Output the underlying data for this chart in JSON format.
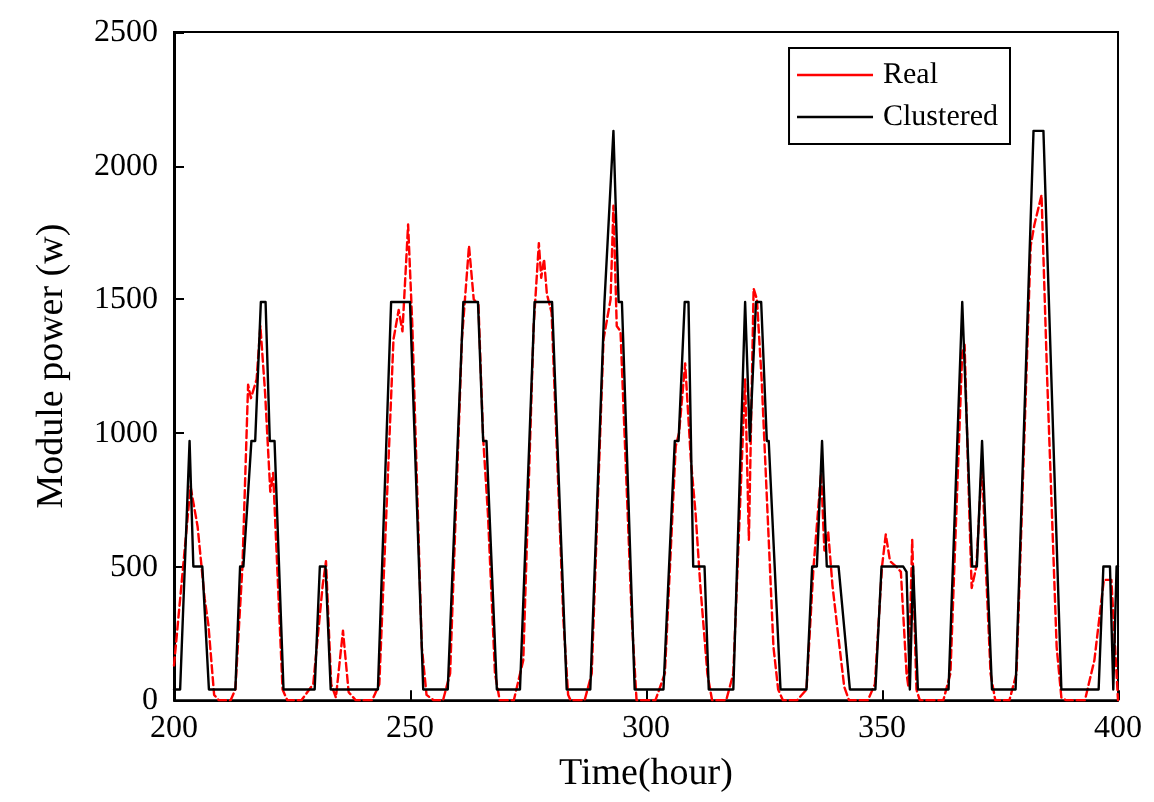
{
  "chart_data": {
    "type": "line",
    "xlabel": "Time(hour)",
    "ylabel": "Module power (w)",
    "xlim": [
      200,
      400
    ],
    "xticks": [
      200,
      250,
      300,
      350,
      400
    ],
    "ylim": [
      0,
      2500
    ],
    "yticks": [
      0,
      500,
      1000,
      1500,
      2000,
      2500
    ],
    "grid": false,
    "legend": "top right",
    "marker": "none",
    "series": [
      {
        "name": "Real",
        "color": "#ff0000",
        "line_style": "dashed",
        "x": [
          200,
          203.5,
          205,
          206.5,
          207.3,
          208.5,
          209.5,
          212,
          213,
          214.5,
          215.7,
          216.3,
          217.5,
          218.3,
          219.3,
          220.4,
          221,
          223,
          224,
          227,
          229.5,
          231.5,
          232.2,
          233.3,
          234.3,
          235.8,
          237,
          238.5,
          242,
          243.5,
          246.5,
          247,
          247.6,
          248.4,
          249.6,
          250.5,
          252.5,
          253.5,
          255,
          257,
          258.5,
          261,
          262.5,
          263.5,
          264.5,
          265.5,
          266.5,
          268,
          269,
          272,
          274,
          276.2,
          277.3,
          277.8,
          278.4,
          279,
          280,
          282.5,
          283.5,
          284,
          287,
          288.5,
          291,
          292.5,
          293.1,
          293.8,
          294.6,
          295,
          297,
          298,
          302,
          304,
          306.3,
          307,
          308.3,
          309.5,
          310.5,
          311.5,
          313,
          314,
          317,
          318.5,
          321,
          321.8,
          322.8,
          323.5,
          324.5,
          326,
          327,
          328,
          329,
          332,
          334,
          335.5,
          337.1,
          337.8,
          338.6,
          339.5,
          341,
          342,
          343,
          347,
          348.5,
          350,
          350.8,
          351.7,
          353,
          354,
          355.2,
          355.6,
          356.4,
          357.3,
          358,
          363,
          364.5,
          367,
          367.5,
          368.5,
          369,
          370,
          371.2,
          372,
          373,
          374,
          377,
          378.5,
          381.5,
          382.3,
          383.8,
          385,
          387,
          388,
          389,
          393,
          395,
          397,
          398.6,
          400
        ],
        "values": [
          130,
          800,
          650,
          380,
          280,
          20,
          0,
          0,
          40,
          500,
          1180,
          1130,
          1200,
          1400,
          1150,
          780,
          850,
          40,
          0,
          0,
          60,
          430,
          520,
          60,
          10,
          260,
          30,
          0,
          0,
          60,
          1350,
          1400,
          1460,
          1380,
          1780,
          1400,
          200,
          20,
          0,
          0,
          100,
          1350,
          1700,
          1500,
          1480,
          980,
          700,
          100,
          0,
          0,
          150,
          1400,
          1710,
          1580,
          1650,
          1520,
          1450,
          300,
          20,
          0,
          0,
          100,
          1350,
          1500,
          1850,
          1400,
          1380,
          1200,
          300,
          0,
          0,
          100,
          950,
          1000,
          1260,
          900,
          700,
          430,
          100,
          0,
          0,
          100,
          1200,
          600,
          1540,
          1500,
          1200,
          600,
          200,
          40,
          0,
          0,
          40,
          500,
          850,
          560,
          630,
          430,
          200,
          50,
          0,
          0,
          60,
          500,
          620,
          520,
          500,
          480,
          100,
          50,
          600,
          40,
          0,
          0,
          100,
          1300,
          1330,
          700,
          420,
          500,
          900,
          500,
          100,
          0,
          0,
          100,
          1700,
          1780,
          1890,
          1200,
          200,
          10,
          0,
          0,
          150,
          450,
          450,
          0
        ]
      },
      {
        "name": "Clustered",
        "color": "#000000",
        "line_style": "solid",
        "x": [
          200,
          201.3,
          203.3,
          204.1,
          206,
          207.4,
          213,
          214,
          214.7,
          216.4,
          217.2,
          218.4,
          219.4,
          220.3,
          221.3,
          223.2,
          229.8,
          230.9,
          232.1,
          233.2,
          243.2,
          246,
          250,
          252.8,
          258,
          261.3,
          264.4,
          265.5,
          266.2,
          268.4,
          273.3,
          276.4,
          280.1,
          283.2,
          288.2,
          291.2,
          293.1,
          294.2,
          294.9,
          297.6,
          303.7,
          306.1,
          306.9,
          308.2,
          309,
          310,
          312.4,
          313.3,
          318.5,
          321,
          322,
          323.3,
          324.4,
          325.6,
          326,
          328.5,
          334,
          335.2,
          336.2,
          337.3,
          338.3,
          340.8,
          343.2,
          348.6,
          349.9,
          354.5,
          355.2,
          355.9,
          356.6,
          357.6,
          364.1,
          367,
          369.1,
          370.1,
          371.2,
          373.3,
          378.3,
          382.1,
          384.2,
          388,
          395.9,
          396.9,
          398.3,
          399,
          399.7,
          400
        ],
        "values": [
          40,
          40,
          970,
          500,
          500,
          40,
          40,
          500,
          500,
          970,
          970,
          1490,
          1490,
          970,
          970,
          40,
          40,
          500,
          500,
          40,
          40,
          1490,
          1490,
          40,
          40,
          1490,
          1490,
          970,
          970,
          40,
          40,
          1490,
          1490,
          40,
          40,
          1490,
          2130,
          1490,
          1490,
          40,
          40,
          970,
          970,
          1490,
          1490,
          500,
          500,
          40,
          40,
          1490,
          970,
          1490,
          1490,
          970,
          970,
          40,
          40,
          500,
          500,
          970,
          500,
          500,
          40,
          40,
          500,
          500,
          480,
          40,
          500,
          40,
          40,
          1490,
          500,
          500,
          970,
          40,
          40,
          2130,
          2130,
          40,
          40,
          500,
          500,
          40,
          500,
          500
        ]
      }
    ]
  }
}
